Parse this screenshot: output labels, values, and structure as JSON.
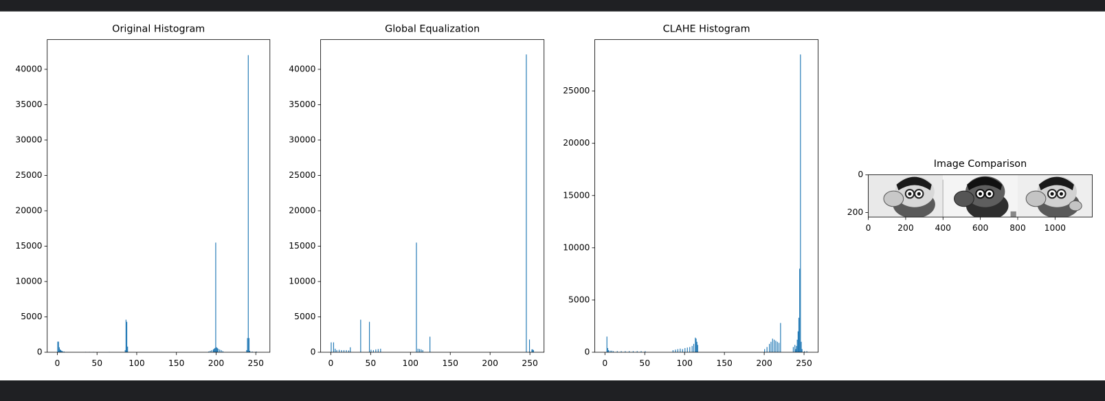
{
  "chart_data": [
    {
      "type": "bar",
      "title": "Original Histogram",
      "color": "#1f77b4",
      "x": [
        0,
        1,
        2,
        3,
        4,
        5,
        6,
        8,
        35,
        40,
        45,
        65,
        85,
        86,
        87,
        88,
        190,
        192,
        194,
        196,
        197,
        198,
        199,
        200,
        201,
        202,
        204,
        206,
        208,
        238,
        239,
        240,
        241,
        242,
        245,
        250
      ],
      "values": [
        1500,
        1500,
        700,
        400,
        300,
        200,
        150,
        100,
        50,
        50,
        50,
        50,
        300,
        4600,
        4300,
        800,
        100,
        200,
        300,
        400,
        500,
        600,
        15500,
        700,
        600,
        500,
        400,
        300,
        150,
        300,
        2000,
        42000,
        2000,
        200,
        100,
        100
      ],
      "xlim": [
        -12.75,
        267.75
      ],
      "ylim": [
        0,
        44200
      ],
      "xticks": [
        0,
        50,
        100,
        150,
        200,
        250
      ],
      "yticks": [
        0,
        5000,
        10000,
        15000,
        20000,
        25000,
        30000,
        35000,
        40000
      ]
    },
    {
      "type": "bar",
      "title": "Global Equalization",
      "color": "#1f77b4",
      "x": [
        0,
        3,
        5,
        7,
        10,
        13,
        16,
        19,
        22,
        24,
        37,
        48,
        50,
        53,
        56,
        59,
        62,
        107,
        109,
        111,
        113,
        115,
        124,
        245,
        249,
        252,
        253,
        254
      ],
      "values": [
        1400,
        1400,
        500,
        300,
        350,
        300,
        300,
        300,
        250,
        700,
        4600,
        4300,
        350,
        300,
        400,
        450,
        500,
        15500,
        500,
        450,
        400,
        300,
        2200,
        42100,
        1800,
        400,
        400,
        300
      ],
      "xlim": [
        -12.75,
        267.75
      ],
      "ylim": [
        0,
        44200
      ],
      "xticks": [
        0,
        50,
        100,
        150,
        200,
        250
      ],
      "yticks": [
        0,
        5000,
        10000,
        15000,
        20000,
        25000,
        30000,
        35000,
        40000
      ]
    },
    {
      "type": "bar",
      "title": "CLAHE Histogram",
      "color": "#1f77b4",
      "x": [
        2,
        3,
        4,
        6,
        8,
        10,
        15,
        20,
        25,
        30,
        35,
        40,
        45,
        50,
        85,
        88,
        91,
        94,
        97,
        100,
        103,
        106,
        109,
        111,
        113,
        114,
        115,
        116,
        200,
        203,
        206,
        208,
        210,
        212,
        214,
        216,
        218,
        220,
        236,
        238,
        239,
        240,
        241,
        242,
        243,
        244,
        245,
        246,
        247,
        250,
        253
      ],
      "values": [
        1500,
        400,
        200,
        150,
        150,
        100,
        100,
        100,
        100,
        100,
        100,
        100,
        100,
        100,
        200,
        250,
        300,
        350,
        300,
        400,
        450,
        500,
        600,
        800,
        1400,
        1300,
        1000,
        700,
        300,
        500,
        800,
        1000,
        1300,
        1200,
        1100,
        1000,
        900,
        2800,
        500,
        700,
        300,
        600,
        1200,
        2000,
        3300,
        8000,
        28500,
        1000,
        300,
        100,
        100
      ],
      "xlim": [
        -12.75,
        267.75
      ],
      "ylim": [
        0,
        29925
      ],
      "xticks": [
        0,
        50,
        100,
        150,
        200,
        250
      ],
      "yticks": [
        0,
        5000,
        10000,
        15000,
        20000,
        25000
      ]
    },
    {
      "type": "image",
      "title": "Image Comparison",
      "xlim": [
        -0.5,
        1199.5
      ],
      "ylim": [
        224.5,
        -0.5
      ],
      "xticks": [
        0,
        200,
        400,
        600,
        800,
        1000
      ],
      "yticks": [
        0,
        200
      ]
    }
  ]
}
